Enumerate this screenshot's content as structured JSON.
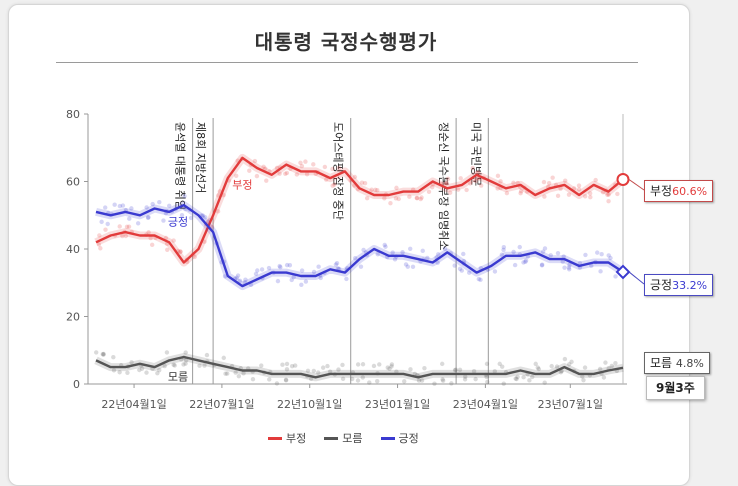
{
  "title": "대통령 국정수행평가",
  "week_label": "9월3주",
  "colors": {
    "neg": "#e23b3b",
    "unk": "#555555",
    "pos": "#3a3ad0"
  },
  "end_labels": {
    "neg": {
      "name": "부정",
      "value": "60.6%"
    },
    "pos": {
      "name": "긍정",
      "value": "33.2%"
    },
    "unk": {
      "name": "모름",
      "value": "4.8%"
    }
  },
  "legend": [
    {
      "name": "부정",
      "key": "neg"
    },
    {
      "name": "모름",
      "key": "unk"
    },
    {
      "name": "긍정",
      "key": "pos"
    }
  ],
  "chart_data": {
    "type": "line",
    "title": "대통령 국정수행평가",
    "x_ticks": [
      "22년04월1일",
      "22년07월1일",
      "22년10월1일",
      "23년01월1일",
      "23년04월1일",
      "23년07월1일"
    ],
    "y_ticks": [
      "0",
      "20",
      "40",
      "60",
      "80"
    ],
    "ylim": [
      0,
      80
    ],
    "grid": false,
    "legend_position": "bottom",
    "events": [
      {
        "label": "윤석열 대통령 취임",
        "x": 3.3
      },
      {
        "label": "제8회 지방선거",
        "x": 4.0
      },
      {
        "label": "도어스테핑 잠정 중단",
        "x": 8.7
      },
      {
        "label": "정순신 국수본부장 임명취소",
        "x": 12.3
      },
      {
        "label": "미국 국빈방문",
        "x": 13.4
      }
    ],
    "series_labels": [
      {
        "name": "부정",
        "x": 5.0,
        "y": 58
      },
      {
        "name": "긍정",
        "x": 2.8,
        "y": 47
      },
      {
        "name": "모름",
        "x": 2.8,
        "y": 1
      }
    ],
    "series": [
      {
        "name": "부정",
        "x": [
          0,
          0.5,
          1,
          1.5,
          2,
          2.5,
          3,
          3.5,
          4,
          4.5,
          5,
          5.5,
          6,
          6.5,
          7,
          7.5,
          8,
          8.5,
          9,
          9.5,
          10,
          10.5,
          11,
          11.5,
          12,
          12.5,
          13,
          13.5,
          14,
          14.5,
          15,
          15.5,
          16,
          16.5,
          17,
          17.5,
          18
        ],
        "values": [
          42,
          44,
          45,
          44,
          44,
          42,
          36,
          40,
          50,
          61,
          67,
          64,
          62,
          65,
          63,
          63,
          61,
          63,
          58,
          56,
          56,
          57,
          57,
          60,
          58,
          59,
          62,
          60,
          58,
          59,
          56,
          58,
          59,
          56,
          59,
          57,
          60.6
        ]
      },
      {
        "name": "모름",
        "x": [
          0,
          0.5,
          1,
          1.5,
          2,
          2.5,
          3,
          3.5,
          4,
          4.5,
          5,
          5.5,
          6,
          6.5,
          7,
          7.5,
          8,
          8.5,
          9,
          9.5,
          10,
          10.5,
          11,
          11.5,
          12,
          12.5,
          13,
          13.5,
          14,
          14.5,
          15,
          15.5,
          16,
          16.5,
          17,
          17.5,
          18
        ],
        "values": [
          7,
          5,
          5,
          6,
          5,
          7,
          8,
          7,
          6,
          5,
          4,
          4,
          3,
          3,
          3,
          2,
          3,
          3,
          3,
          3,
          3,
          3,
          2,
          3,
          3,
          3,
          3,
          3,
          3,
          4,
          3,
          3,
          5,
          3,
          3,
          4,
          4.8
        ]
      },
      {
        "name": "긍정",
        "x": [
          0,
          0.5,
          1,
          1.5,
          2,
          2.5,
          3,
          3.5,
          4,
          4.5,
          5,
          5.5,
          6,
          6.5,
          7,
          7.5,
          8,
          8.5,
          9,
          9.5,
          10,
          10.5,
          11,
          11.5,
          12,
          12.5,
          13,
          13.5,
          14,
          14.5,
          15,
          15.5,
          16,
          16.5,
          17,
          17.5,
          18
        ],
        "values": [
          51,
          50,
          51,
          50,
          52,
          51,
          53,
          50,
          45,
          32,
          29,
          31,
          33,
          33,
          32,
          32,
          34,
          33,
          37,
          40,
          38,
          38,
          37,
          36,
          39,
          36,
          33,
          35,
          38,
          38,
          39,
          37,
          37,
          35,
          36,
          36,
          33.2
        ]
      }
    ]
  }
}
